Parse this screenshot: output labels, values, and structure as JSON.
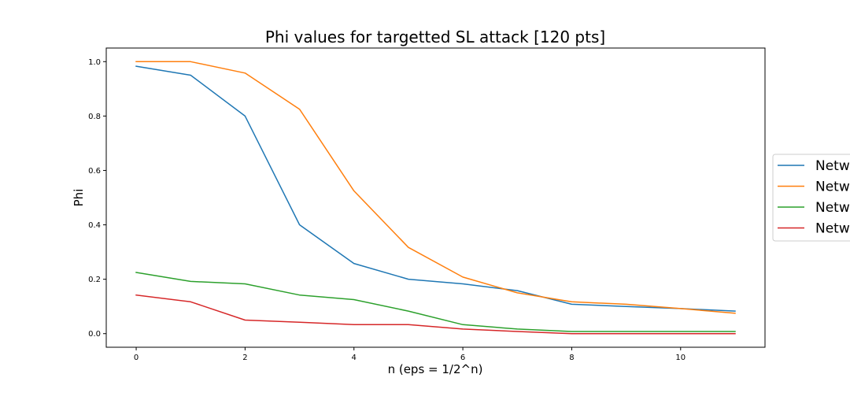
{
  "chart_data": {
    "type": "line",
    "title": "Phi values for targetted SL attack [120 pts]",
    "xlabel": "n (eps = 1/2^n)",
    "ylabel": "Phi",
    "xlim": [
      -0.55,
      11.55
    ],
    "ylim": [
      -0.05,
      1.05
    ],
    "x_ticks": [
      0,
      2,
      4,
      6,
      8,
      10
    ],
    "y_ticks": [
      0.0,
      0.2,
      0.4,
      0.6,
      0.8,
      1.0
    ],
    "x_tick_labels": [
      "0",
      "2",
      "4",
      "6",
      "8",
      "10"
    ],
    "y_tick_labels": [
      "0.0",
      "0.2",
      "0.4",
      "0.6",
      "0.8",
      "1.0"
    ],
    "grid": false,
    "legend_position": "right, outside plot, cut off",
    "x": [
      0,
      1,
      2,
      3,
      4,
      5,
      6,
      7,
      8,
      9,
      10,
      11
    ],
    "series": [
      {
        "name": "Netw",
        "color": "#1f77b4",
        "values": [
          0.983,
          0.95,
          0.8,
          0.4,
          0.258,
          0.2,
          0.183,
          0.158,
          0.108,
          0.1,
          0.092,
          0.083
        ]
      },
      {
        "name": "Netw",
        "color": "#ff7f0e",
        "values": [
          1.0,
          1.0,
          0.958,
          0.825,
          0.525,
          0.317,
          0.208,
          0.15,
          0.117,
          0.108,
          0.092,
          0.075
        ]
      },
      {
        "name": "Netw",
        "color": "#2ca02c",
        "values": [
          0.225,
          0.192,
          0.183,
          0.142,
          0.125,
          0.083,
          0.033,
          0.017,
          0.008,
          0.008,
          0.008,
          0.008
        ]
      },
      {
        "name": "Netw",
        "color": "#d62728",
        "values": [
          0.142,
          0.117,
          0.05,
          0.042,
          0.033,
          0.033,
          0.017,
          0.008,
          0.0,
          0.0,
          0.0,
          0.0
        ]
      }
    ]
  }
}
